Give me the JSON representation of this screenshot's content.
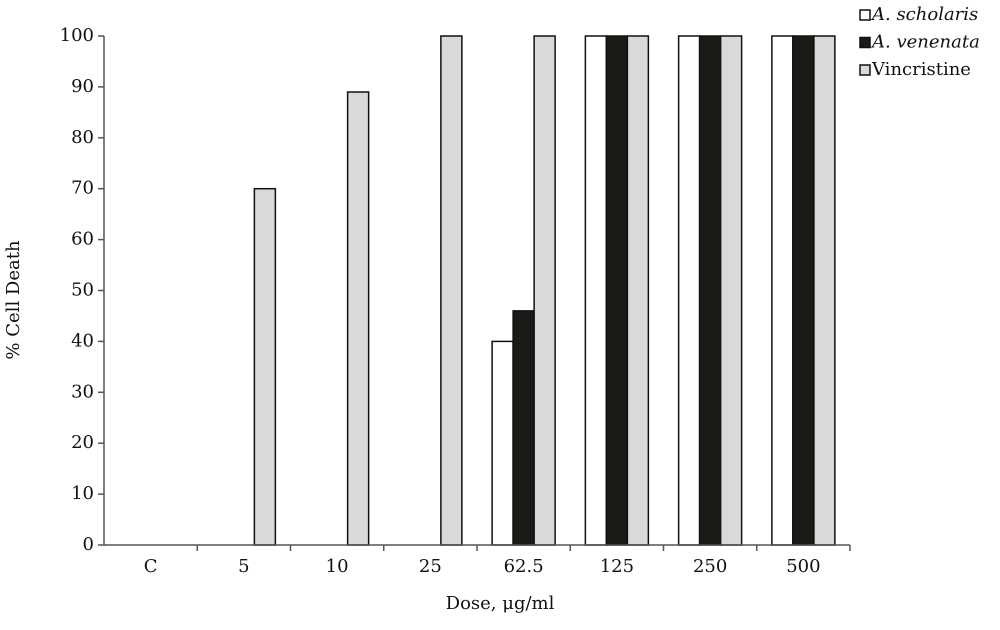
{
  "chart_data": {
    "type": "bar",
    "x_label": "Dose, μg/ml",
    "y_label": "% Cell Death",
    "categories": [
      "C",
      "5",
      "10",
      "25",
      "62.5",
      "125",
      "250",
      "500"
    ],
    "series": [
      {
        "name": "A. scholaris",
        "color": "#ffffff",
        "values": [
          0,
          0,
          0,
          0,
          40,
          100,
          100,
          100
        ]
      },
      {
        "name": "A. venenata",
        "color": "#1a1a17",
        "values": [
          0,
          0,
          0,
          0,
          46,
          100,
          100,
          100
        ]
      },
      {
        "name": "Vincristine",
        "color": "#d9d9d9",
        "values": [
          0,
          70,
          89,
          100,
          100,
          100,
          100,
          100
        ]
      }
    ],
    "ylim": [
      0,
      100
    ],
    "yticks": [
      0,
      10,
      20,
      30,
      40,
      50,
      60,
      70,
      80,
      90,
      100
    ],
    "grid": false,
    "legend": "top-right"
  }
}
